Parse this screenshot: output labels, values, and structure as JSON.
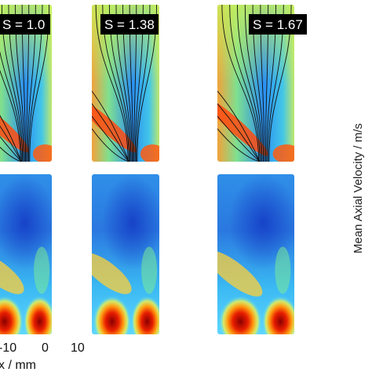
{
  "chart_data": {
    "type": "heatmap",
    "panels": [
      {
        "row": "streamlines",
        "label": "S = 1.0"
      },
      {
        "row": "streamlines",
        "label": "S = 1.38"
      },
      {
        "row": "streamlines",
        "label": "S = 1.67"
      },
      {
        "row": "mean-axial-velocity",
        "label": ""
      },
      {
        "row": "mean-axial-velocity",
        "label": ""
      },
      {
        "row": "mean-axial-velocity",
        "label": ""
      }
    ],
    "xlabel": "x / mm",
    "xticks": [
      "-10",
      "0",
      "10"
    ],
    "xlim": [
      -20,
      10
    ],
    "colorbar_label": "Mean Axial Velocity / m/s",
    "colormap": [
      "#00007f",
      "#0070ff",
      "#22d4ff",
      "#8af08a",
      "#fff24a",
      "#ff7a1a",
      "#9e0000"
    ]
  }
}
